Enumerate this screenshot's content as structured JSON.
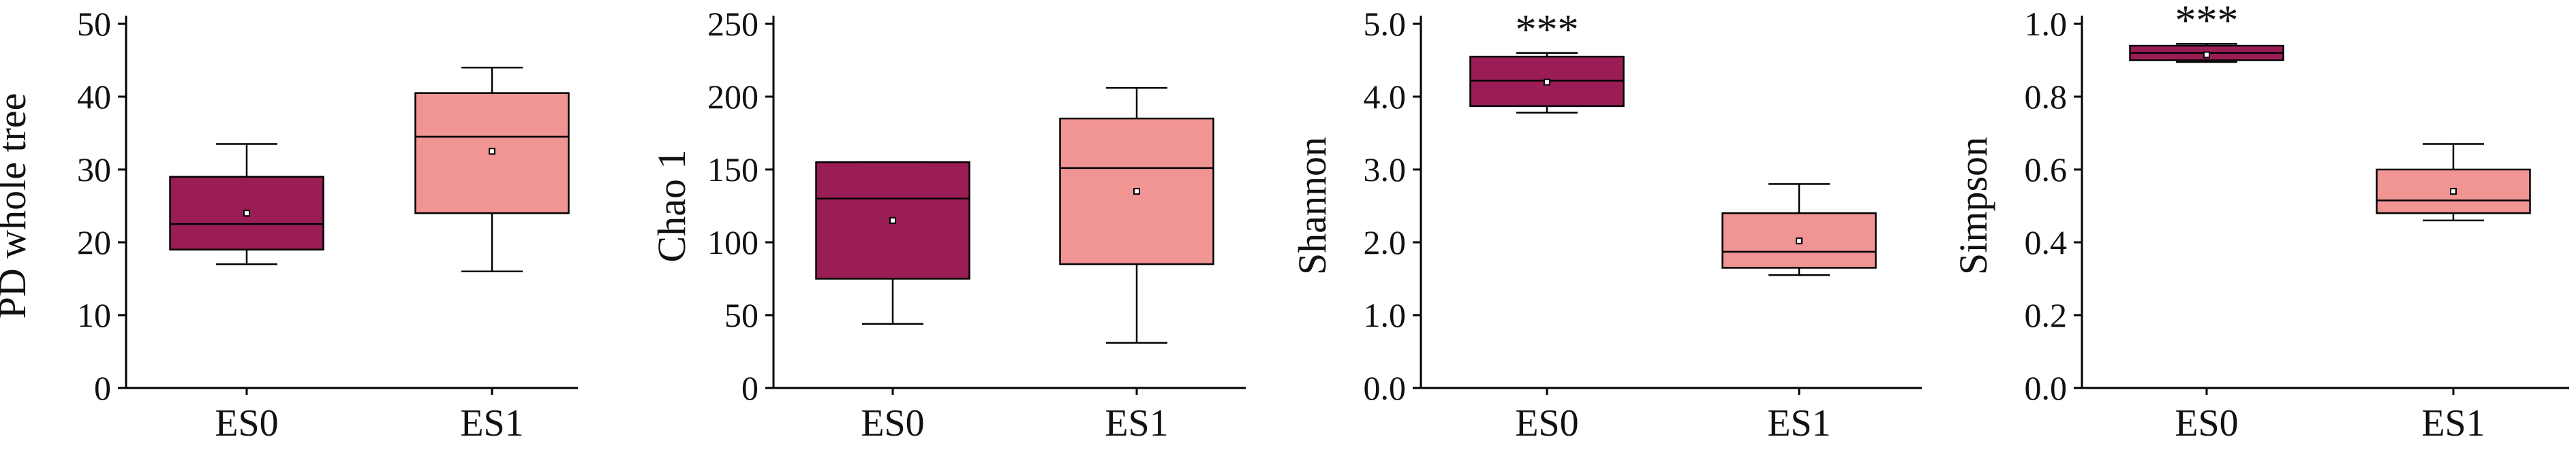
{
  "chart_data": [
    {
      "type": "box",
      "ylabel": "PD whole tree",
      "ylim": [
        0,
        50
      ],
      "yticks": [
        "0",
        "10",
        "20",
        "30",
        "40",
        "50"
      ],
      "categories": [
        "ES0",
        "ES1"
      ],
      "boxes": [
        {
          "category": "ES0",
          "whisker_low": 17,
          "q1": 19,
          "median": 22.5,
          "q3": 29,
          "whisker_high": 33.5,
          "mean": 24,
          "color": "#9b1d56",
          "significance": ""
        },
        {
          "category": "ES1",
          "whisker_low": 16,
          "q1": 24,
          "median": 34.5,
          "q3": 40.5,
          "whisker_high": 44,
          "mean": 32.5,
          "color": "#f09494",
          "significance": ""
        }
      ]
    },
    {
      "type": "box",
      "ylabel": "Chao 1",
      "ylim": [
        0,
        250
      ],
      "yticks": [
        "0",
        "50",
        "100",
        "150",
        "200",
        "250"
      ],
      "categories": [
        "ES0",
        "ES1"
      ],
      "boxes": [
        {
          "category": "ES0",
          "whisker_low": 44,
          "q1": 75,
          "median": 130,
          "q3": 155,
          "whisker_high": 155,
          "mean": 115,
          "color": "#9b1d56",
          "significance": ""
        },
        {
          "category": "ES1",
          "whisker_low": 31,
          "q1": 85,
          "median": 151,
          "q3": 185,
          "whisker_high": 206,
          "mean": 135,
          "color": "#f09494",
          "significance": ""
        }
      ]
    },
    {
      "type": "box",
      "ylabel": "Shannon",
      "ylim": [
        0,
        5
      ],
      "yticks": [
        "0.0",
        "1.0",
        "2.0",
        "3.0",
        "4.0",
        "5.0"
      ],
      "categories": [
        "ES0",
        "ES1"
      ],
      "boxes": [
        {
          "category": "ES0",
          "whisker_low": 3.78,
          "q1": 3.87,
          "median": 4.22,
          "q3": 4.55,
          "whisker_high": 4.6,
          "mean": 4.2,
          "color": "#9b1d56",
          "significance": "***"
        },
        {
          "category": "ES1",
          "whisker_low": 1.55,
          "q1": 1.65,
          "median": 1.87,
          "q3": 2.4,
          "whisker_high": 2.8,
          "mean": 2.02,
          "color": "#f09494",
          "significance": ""
        }
      ]
    },
    {
      "type": "box",
      "ylabel": "Simpson",
      "ylim": [
        0,
        1
      ],
      "yticks": [
        "0.0",
        "0.2",
        "0.4",
        "0.6",
        "0.8",
        "1.0"
      ],
      "categories": [
        "ES0",
        "ES1"
      ],
      "boxes": [
        {
          "category": "ES0",
          "whisker_low": 0.895,
          "q1": 0.9,
          "median": 0.92,
          "q3": 0.94,
          "whisker_high": 0.945,
          "mean": 0.915,
          "color": "#9b1d56",
          "significance": "***"
        },
        {
          "category": "ES1",
          "whisker_low": 0.46,
          "q1": 0.48,
          "median": 0.515,
          "q3": 0.6,
          "whisker_high": 0.67,
          "mean": 0.54,
          "color": "#f09494",
          "significance": ""
        }
      ]
    }
  ]
}
